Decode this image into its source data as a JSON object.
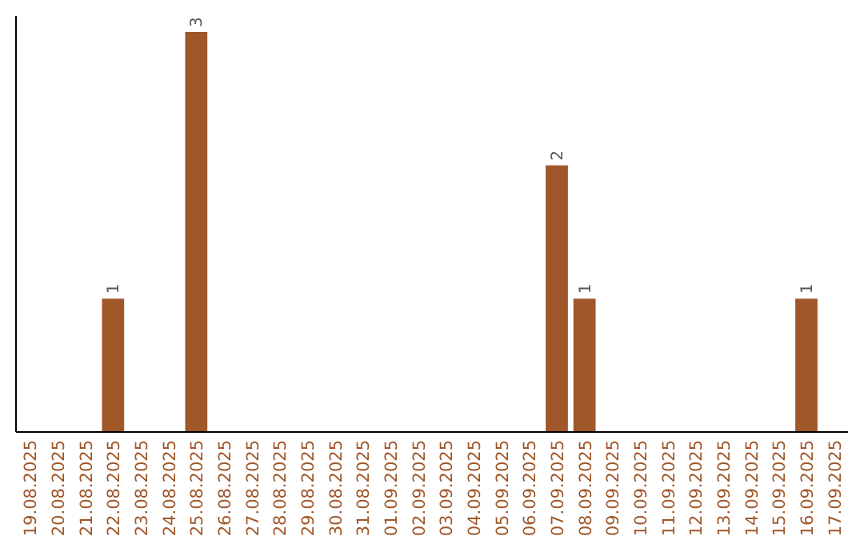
{
  "chart_data": {
    "type": "bar",
    "categories": [
      "19.08.2025",
      "20.08.2025",
      "21.08.2025",
      "22.08.2025",
      "23.08.2025",
      "24.08.2025",
      "25.08.2025",
      "26.08.2025",
      "27.08.2025",
      "28.08.2025",
      "29.08.2025",
      "30.08.2025",
      "31.08.2025",
      "01.09.2025",
      "02.09.2025",
      "03.09.2025",
      "04.09.2025",
      "05.09.2025",
      "06.09.2025",
      "07.09.2025",
      "08.09.2025",
      "09.09.2025",
      "10.09.2025",
      "11.09.2025",
      "12.09.2025",
      "13.09.2025",
      "14.09.2025",
      "15.09.2025",
      "16.09.2025",
      "17.09.2025"
    ],
    "values": [
      0,
      0,
      0,
      1,
      0,
      0,
      3,
      0,
      0,
      0,
      0,
      0,
      0,
      0,
      0,
      0,
      0,
      0,
      0,
      2,
      1,
      0,
      0,
      0,
      0,
      0,
      0,
      0,
      1,
      0
    ],
    "value_labels": [
      null,
      null,
      null,
      "1",
      null,
      null,
      "3",
      null,
      null,
      null,
      null,
      null,
      null,
      null,
      null,
      null,
      null,
      null,
      null,
      "2",
      "1",
      null,
      null,
      null,
      null,
      null,
      null,
      null,
      "1",
      null
    ],
    "color": "#a0572a",
    "ylim": [
      0,
      3.12
    ],
    "tick_labels": "x"
  }
}
